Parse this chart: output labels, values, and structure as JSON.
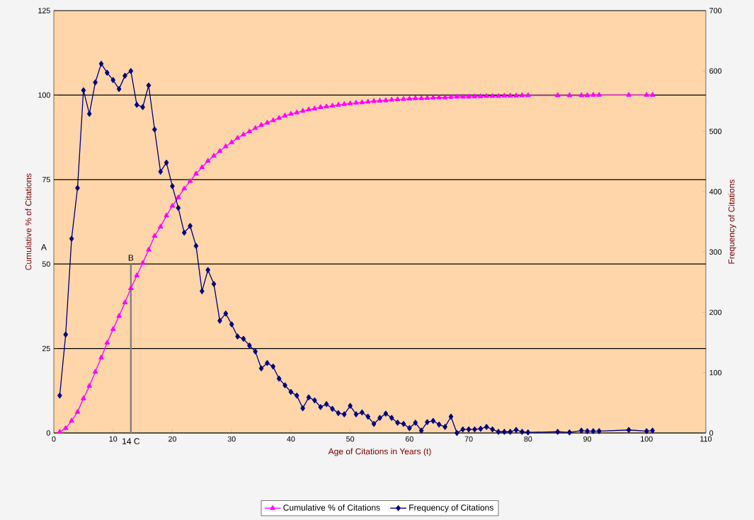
{
  "chart_data": {
    "type": "line",
    "xlabel": "Age of Citations in Years (t)",
    "ylabel": "Cumulative % of Citations",
    "y2label": "Frequency of Citations",
    "xlim": [
      0,
      110
    ],
    "xticks": [
      0,
      10,
      20,
      30,
      40,
      50,
      60,
      70,
      80,
      90,
      100,
      110
    ],
    "ylim": [
      0,
      125
    ],
    "yticks": [
      0,
      25,
      50,
      75,
      100,
      125
    ],
    "y2lim": [
      0,
      700
    ],
    "y2ticks": [
      0,
      100,
      200,
      300,
      400,
      500,
      600,
      700
    ],
    "grid": "y",
    "legend": "bottom",
    "line_style": "solid",
    "annotations": [
      "A",
      {
        "text": "B",
        "x": 13,
        "y": 50
      },
      {
        "text": "14 C",
        "x": 13,
        "y": 0
      }
    ],
    "series": [
      {
        "name": "Cumulative % of Citations",
        "color": "#ff00ff",
        "marker": "triangle",
        "x": [
          1,
          2,
          3,
          4,
          5,
          6,
          7,
          8,
          9,
          10,
          11,
          12,
          13,
          14,
          15,
          16,
          17,
          18,
          19,
          20,
          21,
          22,
          23,
          24,
          25,
          26,
          27,
          28,
          29,
          30,
          31,
          32,
          33,
          34,
          35,
          36,
          37,
          38,
          39,
          40,
          41,
          42,
          43,
          44,
          45,
          46,
          47,
          48,
          49,
          50,
          51,
          52,
          53,
          54,
          55,
          56,
          57,
          58,
          59,
          60,
          61,
          62,
          63,
          64,
          65,
          66,
          67,
          68,
          69,
          70,
          71,
          72,
          73,
          74,
          75,
          76,
          77,
          78,
          79,
          80,
          85,
          87,
          89,
          90,
          91,
          92,
          97,
          100,
          101
        ],
        "values": [
          0.3,
          1.4,
          3.6,
          6.2,
          10.2,
          13.9,
          18.1,
          22.3,
          26.7,
          30.7,
          34.6,
          38.6,
          42.8,
          46.6,
          50.3,
          54.2,
          58.3,
          61.0,
          64.3,
          67.2,
          69.7,
          72.3,
          74.5,
          76.7,
          78.6,
          80.5,
          82.0,
          83.4,
          84.8,
          86.0,
          87.3,
          88.3,
          89.2,
          90.2,
          91.1,
          91.8,
          92.5,
          93.2,
          93.9,
          94.4,
          94.8,
          95.3,
          95.7,
          96.0,
          96.4,
          96.6,
          96.8,
          97.1,
          97.3,
          97.5,
          97.7,
          97.8,
          98.0,
          98.2,
          98.3,
          98.4,
          98.6,
          98.7,
          98.8,
          98.9,
          99.0,
          99.0,
          99.1,
          99.2,
          99.3,
          99.3,
          99.4,
          99.5,
          99.5,
          99.5,
          99.6,
          99.6,
          99.7,
          99.7,
          99.7,
          99.8,
          99.8,
          99.8,
          99.9,
          99.9,
          99.9,
          99.9,
          99.9,
          99.9,
          100,
          100,
          100,
          100,
          100
        ]
      },
      {
        "name": "Frequency of Citations",
        "color": "#000080",
        "marker": "diamond",
        "axis": "y2",
        "x": [
          1,
          2,
          3,
          4,
          5,
          6,
          7,
          8,
          9,
          10,
          11,
          12,
          13,
          14,
          15,
          16,
          17,
          18,
          19,
          20,
          21,
          22,
          23,
          24,
          25,
          26,
          27,
          28,
          29,
          30,
          31,
          32,
          33,
          34,
          35,
          36,
          37,
          38,
          39,
          40,
          41,
          42,
          43,
          44,
          45,
          46,
          47,
          48,
          49,
          50,
          51,
          52,
          53,
          54,
          55,
          56,
          57,
          58,
          59,
          60,
          61,
          62,
          63,
          64,
          65,
          66,
          67,
          68,
          69,
          70,
          71,
          72,
          73,
          74,
          75,
          76,
          77,
          78,
          79,
          80,
          85,
          87,
          89,
          90,
          91,
          92,
          97,
          100,
          101
        ],
        "values": [
          62,
          163,
          322,
          406,
          568,
          529,
          581,
          612,
          597,
          585,
          570,
          592,
          600,
          544,
          540,
          576,
          503,
          433,
          448,
          409,
          373,
          332,
          343,
          310,
          235,
          270,
          247,
          186,
          198,
          180,
          160,
          156,
          145,
          135,
          107,
          116,
          110,
          90,
          79,
          68,
          62,
          41,
          59,
          54,
          43,
          48,
          40,
          33,
          31,
          45,
          31,
          34,
          27,
          15,
          25,
          32,
          25,
          17,
          15,
          8,
          17,
          4,
          18,
          20,
          14,
          10,
          27,
          0,
          6,
          6,
          6,
          7,
          10,
          6,
          2,
          2,
          2,
          5,
          2,
          1,
          2,
          1,
          4,
          3,
          3,
          3,
          5,
          3,
          4
        ]
      },
      {
        "type": "line",
        "color": "#808080",
        "marker": "none",
        "x": [
          13,
          13
        ],
        "values": [
          0,
          50
        ]
      }
    ]
  }
}
